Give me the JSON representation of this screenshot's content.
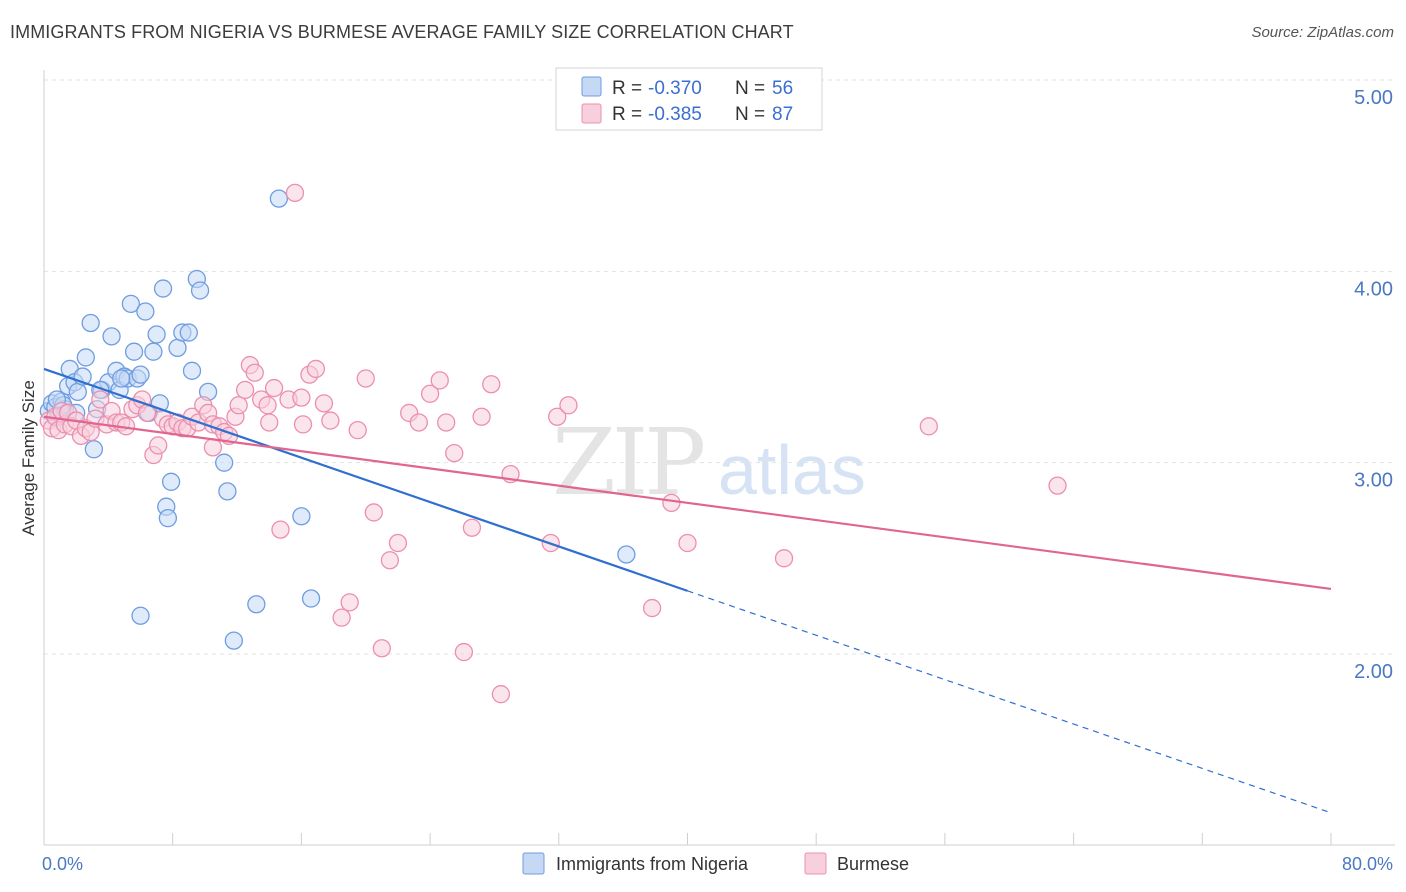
{
  "title": "IMMIGRANTS FROM NIGERIA VS BURMESE AVERAGE FAMILY SIZE CORRELATION CHART",
  "source": "Source: ZipAtlas.com",
  "watermark": {
    "main": "ZIP",
    "sub": "atlas"
  },
  "chart_data": {
    "type": "scatter",
    "ylabel": "Average Family Size",
    "xlim": [
      0,
      80
    ],
    "ylim": [
      1.1,
      5.2
    ],
    "y_ticks": [
      {
        "value": 5.0,
        "label": "5.00"
      },
      {
        "value": 4.0,
        "label": "4.00"
      },
      {
        "value": 3.0,
        "label": "3.00"
      },
      {
        "value": 2.0,
        "label": "2.00"
      }
    ],
    "x_tick_labels": {
      "left": "0.0%",
      "right": "80.0%"
    },
    "x_minor_ticks": [
      8,
      16,
      24,
      32,
      40,
      48,
      56,
      64,
      72,
      80
    ],
    "legend": {
      "r_label": "R =",
      "n_label": "N =",
      "entries": [
        {
          "r": "-0.370",
          "n": "56"
        },
        {
          "r": "-0.385",
          "n": "87"
        }
      ]
    },
    "series": [
      {
        "name": "Immigrants from Nigeria",
        "color": "#6f9de0",
        "fill": "#c5d9f5",
        "line_color": "#2f6fcf",
        "trend": {
          "x0": 0,
          "y0": 3.49,
          "x1": 40,
          "y1": 2.33,
          "x_end": 80,
          "y_end": 1.17
        },
        "points": [
          [
            0.3,
            3.27
          ],
          [
            0.5,
            3.31
          ],
          [
            0.7,
            3.29
          ],
          [
            0.9,
            3.24
          ],
          [
            1.1,
            3.32
          ],
          [
            1.3,
            3.28
          ],
          [
            1.5,
            3.4
          ],
          [
            1.6,
            3.49
          ],
          [
            1.9,
            3.42
          ],
          [
            2.1,
            3.37
          ],
          [
            2.4,
            3.45
          ],
          [
            2.6,
            3.55
          ],
          [
            2.9,
            3.73
          ],
          [
            3.1,
            3.07
          ],
          [
            3.3,
            3.28
          ],
          [
            3.6,
            3.38
          ],
          [
            4.0,
            3.42
          ],
          [
            4.2,
            3.66
          ],
          [
            4.5,
            3.48
          ],
          [
            4.7,
            3.38
          ],
          [
            5.0,
            3.45
          ],
          [
            5.2,
            3.44
          ],
          [
            5.4,
            3.83
          ],
          [
            5.6,
            3.58
          ],
          [
            5.8,
            3.44
          ],
          [
            6.0,
            3.46
          ],
          [
            6.3,
            3.79
          ],
          [
            6.5,
            3.26
          ],
          [
            6.8,
            3.58
          ],
          [
            7.0,
            3.67
          ],
          [
            7.2,
            3.31
          ],
          [
            7.4,
            3.91
          ],
          [
            7.6,
            2.77
          ],
          [
            7.7,
            2.71
          ],
          [
            7.9,
            2.9
          ],
          [
            8.3,
            3.6
          ],
          [
            8.6,
            3.68
          ],
          [
            9.0,
            3.68
          ],
          [
            9.2,
            3.48
          ],
          [
            9.5,
            3.96
          ],
          [
            9.7,
            3.9
          ],
          [
            10.2,
            3.37
          ],
          [
            11.2,
            3.0
          ],
          [
            11.4,
            2.85
          ],
          [
            11.8,
            2.07
          ],
          [
            13.2,
            2.26
          ],
          [
            14.6,
            4.38
          ],
          [
            16.0,
            2.72
          ],
          [
            16.6,
            2.29
          ],
          [
            36.2,
            2.52
          ],
          [
            6.0,
            2.2
          ],
          [
            3.5,
            3.38
          ],
          [
            1.2,
            3.3
          ],
          [
            2.0,
            3.26
          ],
          [
            0.8,
            3.33
          ],
          [
            4.8,
            3.44
          ]
        ]
      },
      {
        "name": "Burmese",
        "color": "#ec8fae",
        "fill": "#f8cfdd",
        "line_color": "#e06590",
        "trend": {
          "x0": 0,
          "y0": 3.24,
          "x1": 80,
          "y1": 2.34
        },
        "points": [
          [
            0.3,
            3.22
          ],
          [
            0.5,
            3.18
          ],
          [
            0.7,
            3.24
          ],
          [
            0.9,
            3.17
          ],
          [
            1.1,
            3.27
          ],
          [
            1.3,
            3.2
          ],
          [
            1.5,
            3.26
          ],
          [
            1.7,
            3.19
          ],
          [
            2.0,
            3.22
          ],
          [
            2.3,
            3.14
          ],
          [
            2.6,
            3.18
          ],
          [
            2.9,
            3.16
          ],
          [
            3.2,
            3.23
          ],
          [
            3.5,
            3.33
          ],
          [
            3.9,
            3.2
          ],
          [
            4.2,
            3.27
          ],
          [
            4.5,
            3.21
          ],
          [
            4.8,
            3.21
          ],
          [
            5.1,
            3.19
          ],
          [
            5.5,
            3.28
          ],
          [
            5.8,
            3.3
          ],
          [
            6.1,
            3.33
          ],
          [
            6.4,
            3.26
          ],
          [
            6.8,
            3.04
          ],
          [
            7.1,
            3.09
          ],
          [
            7.4,
            3.23
          ],
          [
            7.7,
            3.2
          ],
          [
            8.0,
            3.19
          ],
          [
            8.3,
            3.21
          ],
          [
            8.6,
            3.18
          ],
          [
            8.9,
            3.18
          ],
          [
            9.2,
            3.24
          ],
          [
            9.6,
            3.21
          ],
          [
            9.9,
            3.3
          ],
          [
            10.2,
            3.26
          ],
          [
            10.5,
            3.2
          ],
          [
            10.9,
            3.19
          ],
          [
            11.2,
            3.16
          ],
          [
            11.5,
            3.14
          ],
          [
            11.9,
            3.24
          ],
          [
            12.1,
            3.3
          ],
          [
            12.5,
            3.38
          ],
          [
            12.8,
            3.51
          ],
          [
            13.1,
            3.47
          ],
          [
            13.5,
            3.33
          ],
          [
            13.9,
            3.3
          ],
          [
            14.3,
            3.39
          ],
          [
            14.7,
            2.65
          ],
          [
            15.2,
            3.33
          ],
          [
            15.6,
            4.41
          ],
          [
            16.1,
            3.2
          ],
          [
            16.5,
            3.46
          ],
          [
            16.9,
            3.49
          ],
          [
            17.4,
            3.31
          ],
          [
            17.8,
            3.22
          ],
          [
            18.5,
            2.19
          ],
          [
            19.0,
            2.27
          ],
          [
            19.5,
            3.17
          ],
          [
            20.0,
            3.44
          ],
          [
            20.5,
            2.74
          ],
          [
            21.0,
            2.03
          ],
          [
            21.5,
            2.49
          ],
          [
            22.0,
            2.58
          ],
          [
            22.7,
            3.26
          ],
          [
            23.3,
            3.21
          ],
          [
            24.0,
            3.36
          ],
          [
            24.6,
            3.43
          ],
          [
            25.0,
            3.21
          ],
          [
            25.5,
            3.05
          ],
          [
            26.1,
            2.01
          ],
          [
            26.6,
            2.66
          ],
          [
            27.2,
            3.24
          ],
          [
            27.8,
            3.41
          ],
          [
            28.4,
            1.79
          ],
          [
            29.0,
            2.94
          ],
          [
            31.5,
            2.58
          ],
          [
            31.9,
            3.24
          ],
          [
            32.6,
            3.3
          ],
          [
            37.8,
            2.24
          ],
          [
            39.0,
            2.79
          ],
          [
            40.0,
            2.58
          ],
          [
            46.0,
            2.5
          ],
          [
            55.0,
            3.19
          ],
          [
            63.0,
            2.88
          ],
          [
            16.0,
            3.34
          ],
          [
            14.0,
            3.21
          ],
          [
            10.5,
            3.08
          ]
        ]
      }
    ]
  }
}
